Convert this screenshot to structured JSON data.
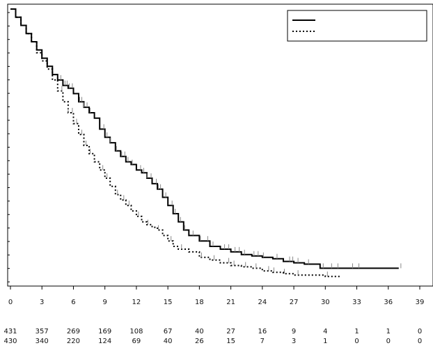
{
  "chart_data": {
    "type": "line",
    "title": "",
    "xlabel": "",
    "ylabel": "",
    "xlim": [
      0,
      39
    ],
    "ylim": [
      0,
      1
    ],
    "x_ticks": [
      0,
      3,
      6,
      9,
      12,
      15,
      18,
      21,
      24,
      27,
      30,
      33,
      36,
      39
    ],
    "x_tick_labels": [
      "0",
      "3",
      "6",
      "9",
      "12",
      "15",
      "18",
      "21",
      "24",
      "27",
      "30",
      "33",
      "36",
      "39"
    ],
    "y_ticks_count": 21,
    "grid": false,
    "legend_position": "top-right",
    "series": [
      {
        "style": "solid",
        "color": "#000000",
        "points": [
          [
            0,
            1.0
          ],
          [
            0.5,
            0.97
          ],
          [
            1,
            0.94
          ],
          [
            1.5,
            0.91
          ],
          [
            2,
            0.88
          ],
          [
            2.5,
            0.85
          ],
          [
            3,
            0.82
          ],
          [
            3.5,
            0.79
          ],
          [
            4,
            0.76
          ],
          [
            4.5,
            0.74
          ],
          [
            5,
            0.72
          ],
          [
            5.5,
            0.71
          ],
          [
            6,
            0.69
          ],
          [
            6.5,
            0.66
          ],
          [
            7,
            0.64
          ],
          [
            7.5,
            0.62
          ],
          [
            8,
            0.6
          ],
          [
            8.5,
            0.56
          ],
          [
            9,
            0.53
          ],
          [
            9.5,
            0.51
          ],
          [
            10,
            0.48
          ],
          [
            10.5,
            0.46
          ],
          [
            11,
            0.44
          ],
          [
            11.5,
            0.43
          ],
          [
            12,
            0.41
          ],
          [
            12.5,
            0.4
          ],
          [
            13,
            0.38
          ],
          [
            13.5,
            0.36
          ],
          [
            14,
            0.34
          ],
          [
            14.5,
            0.31
          ],
          [
            15,
            0.28
          ],
          [
            15.5,
            0.25
          ],
          [
            16,
            0.22
          ],
          [
            16.5,
            0.19
          ],
          [
            17,
            0.17
          ],
          [
            18,
            0.15
          ],
          [
            19,
            0.13
          ],
          [
            20,
            0.12
          ],
          [
            21,
            0.11
          ],
          [
            22,
            0.1
          ],
          [
            23,
            0.095
          ],
          [
            24,
            0.09
          ],
          [
            25,
            0.085
          ],
          [
            26,
            0.075
          ],
          [
            27,
            0.07
          ],
          [
            28,
            0.065
          ],
          [
            29,
            0.065
          ],
          [
            29.5,
            0.05
          ],
          [
            31,
            0.05
          ],
          [
            33,
            0.05
          ],
          [
            35,
            0.05
          ],
          [
            37,
            0.05
          ]
        ],
        "censor_x": [
          4.8,
          5.2,
          5.4,
          5.6,
          5.9,
          6.6,
          6.8,
          7.0,
          7.3,
          7.6,
          8.9,
          9.2,
          9.5,
          10.1,
          10.6,
          10.9,
          11.2,
          11.6,
          12.4,
          12.7,
          13.0,
          13.4,
          13.9,
          14.1,
          14.3,
          14.8,
          15.4,
          15.7,
          16.2,
          16.6,
          17.4,
          18.1,
          18.8,
          19.3,
          20.4,
          20.8,
          21.4,
          21.8,
          22.3,
          23.2,
          23.6,
          24.1,
          25.4,
          26.6,
          26.9,
          27.4,
          28.4,
          29.8,
          30.6,
          31.2,
          32.6,
          33.2,
          37.2
        ]
      },
      {
        "style": "dotted",
        "color": "#000000",
        "points": [
          [
            0,
            1.0
          ],
          [
            0.5,
            0.97
          ],
          [
            1,
            0.94
          ],
          [
            1.5,
            0.91
          ],
          [
            2,
            0.88
          ],
          [
            2.5,
            0.84
          ],
          [
            3,
            0.81
          ],
          [
            3.5,
            0.78
          ],
          [
            4,
            0.74
          ],
          [
            4.5,
            0.7
          ],
          [
            5,
            0.66
          ],
          [
            5.5,
            0.62
          ],
          [
            6,
            0.58
          ],
          [
            6.5,
            0.54
          ],
          [
            7,
            0.5
          ],
          [
            7.5,
            0.47
          ],
          [
            8,
            0.44
          ],
          [
            8.5,
            0.41
          ],
          [
            9,
            0.38
          ],
          [
            9.5,
            0.35
          ],
          [
            10,
            0.32
          ],
          [
            10.5,
            0.3
          ],
          [
            11,
            0.28
          ],
          [
            11.5,
            0.26
          ],
          [
            12,
            0.24
          ],
          [
            12.5,
            0.22
          ],
          [
            13,
            0.21
          ],
          [
            13.5,
            0.2
          ],
          [
            14,
            0.19
          ],
          [
            14.5,
            0.17
          ],
          [
            15,
            0.15
          ],
          [
            15.5,
            0.13
          ],
          [
            16,
            0.12
          ],
          [
            17,
            0.11
          ],
          [
            18,
            0.09
          ],
          [
            19,
            0.08
          ],
          [
            20,
            0.07
          ],
          [
            21,
            0.06
          ],
          [
            22,
            0.055
          ],
          [
            23,
            0.05
          ],
          [
            24,
            0.04
          ],
          [
            25,
            0.035
          ],
          [
            26,
            0.03
          ],
          [
            27,
            0.025
          ],
          [
            28,
            0.025
          ],
          [
            29,
            0.025
          ],
          [
            30,
            0.02
          ],
          [
            31,
            0.02
          ],
          [
            31.5,
            0.02
          ]
        ],
        "censor_x": [
          4.9,
          5.5,
          5.9,
          6.3,
          6.8,
          7.2,
          7.6,
          8.8,
          9.2,
          10.2,
          10.8,
          11.3,
          12.2,
          13.1,
          14.1,
          15.3,
          16.3,
          18.2,
          19.4,
          20.8,
          21.3,
          22.4,
          23.4,
          24.6,
          25.1,
          26.1,
          27.4,
          30.2
        ]
      }
    ],
    "at_risk": [
      [
        "431",
        "357",
        "269",
        "169",
        "108",
        "67",
        "40",
        "27",
        "16",
        "9",
        "4",
        "1",
        "1",
        "0"
      ],
      [
        "430",
        "340",
        "220",
        "124",
        "69",
        "40",
        "26",
        "15",
        "7",
        "3",
        "1",
        "0",
        "0",
        "0"
      ]
    ]
  }
}
